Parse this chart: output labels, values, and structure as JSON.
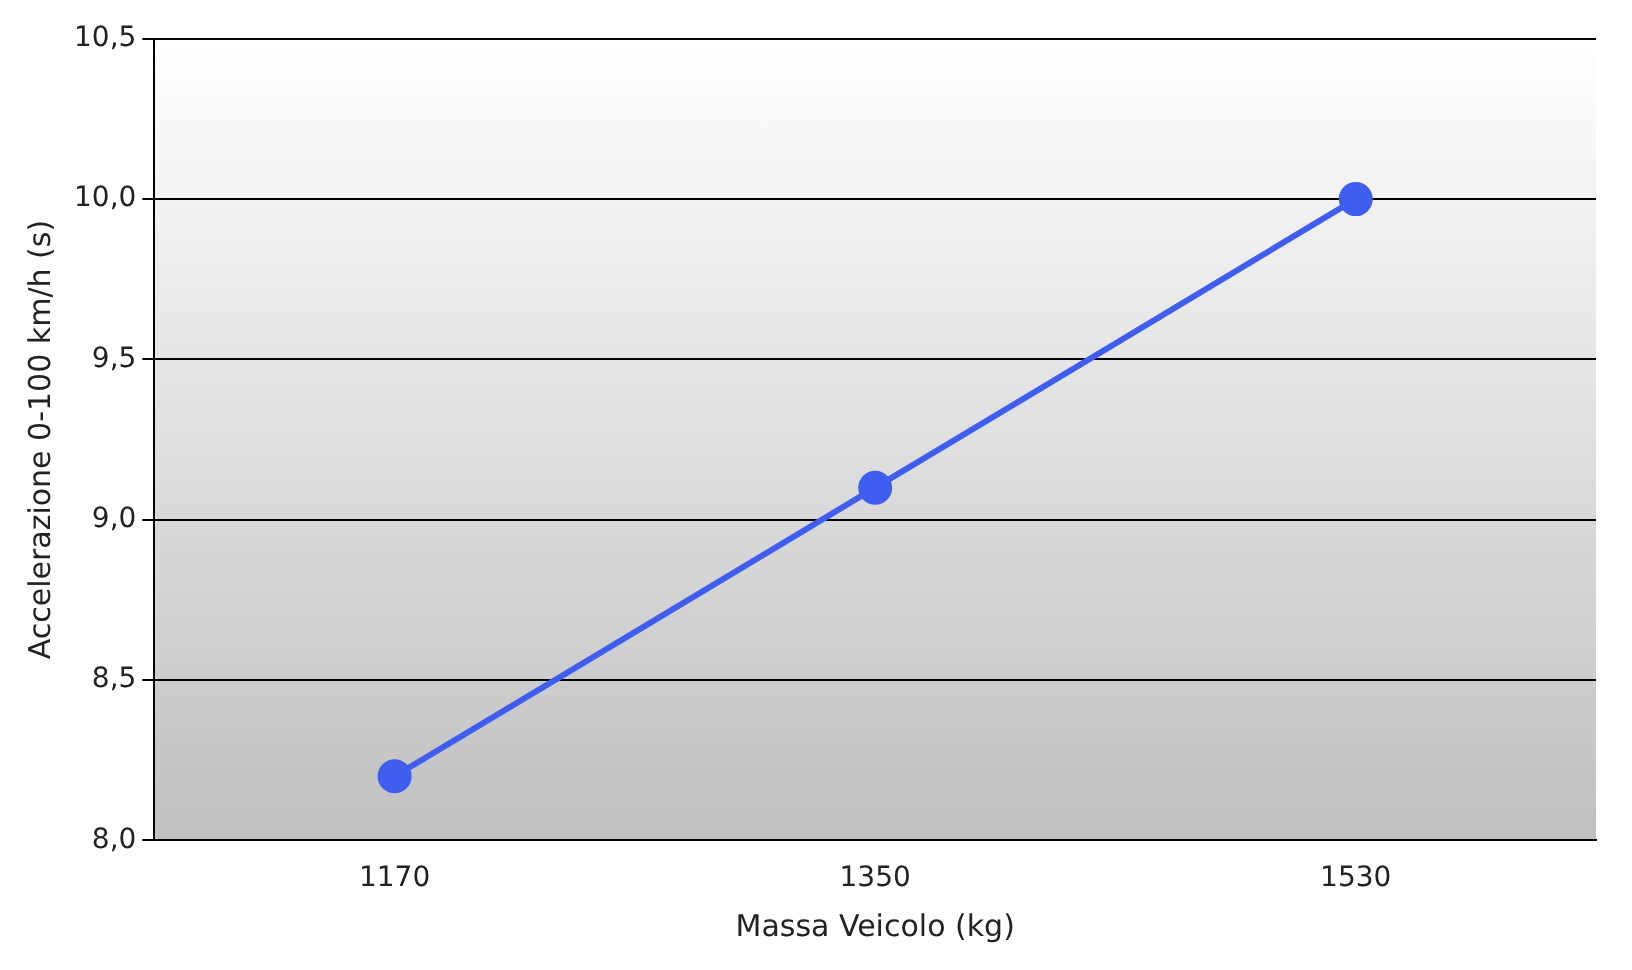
{
  "chart_data": {
    "type": "line",
    "xlabel": "Massa Veicolo (kg)",
    "ylabel": "Accelerazione 0-100 km/h (s)",
    "categories": [
      "1170",
      "1350",
      "1530"
    ],
    "series": [
      {
        "color": "#3f5ef0",
        "values": [
          8.2,
          9.1,
          10.0
        ]
      }
    ],
    "ylim": [
      8,
      10.5
    ],
    "yticks": [
      {
        "value": 8,
        "label": "8,0"
      },
      {
        "value": 8.5,
        "label": "8,5"
      },
      {
        "value": 9,
        "label": "9,0"
      },
      {
        "value": 9.5,
        "label": "9,5"
      },
      {
        "value": 10,
        "label": "10,0"
      },
      {
        "value": 10.5,
        "label": "10,5"
      }
    ],
    "grid": "y",
    "legend": false,
    "marker": "circle",
    "line_style": "solid"
  }
}
